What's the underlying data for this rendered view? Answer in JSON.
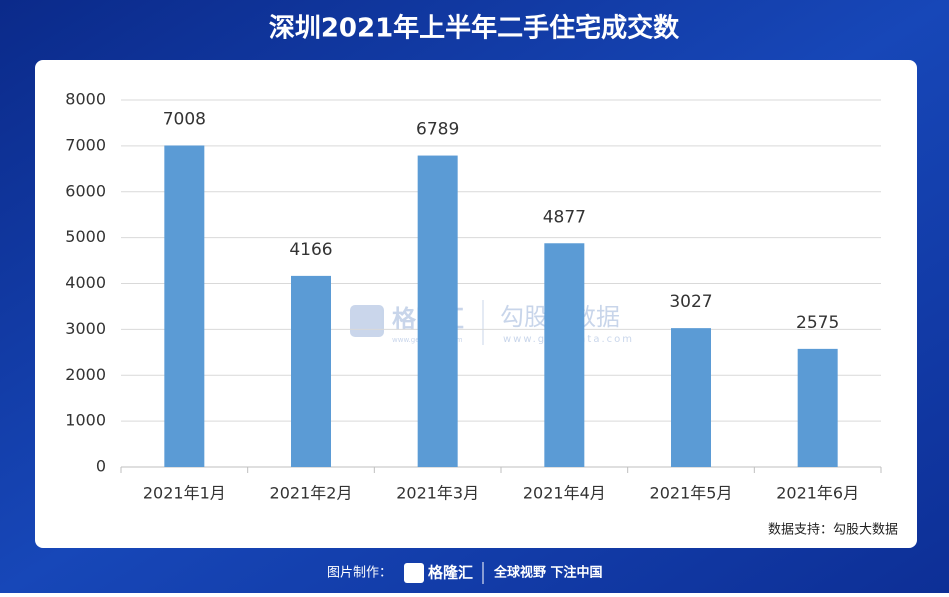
{
  "chart_data": {
    "type": "bar",
    "title": "深圳2021年上半年二手住宅成交数",
    "categories": [
      "2021年1月",
      "2021年2月",
      "2021年3月",
      "2021年4月",
      "2021年5月",
      "2021年6月"
    ],
    "values": [
      7008,
      4166,
      6789,
      4877,
      3027,
      2575
    ],
    "color": "#5b9bd5",
    "ylim": [
      0,
      8000
    ],
    "yticks": [
      0,
      1000,
      2000,
      3000,
      4000,
      5000,
      6000,
      7000,
      8000
    ],
    "grid": true,
    "source": "数据支持：勾股大数据"
  },
  "watermark": {
    "brand": "格隆汇",
    "brand_url": "www.gelonghui.com",
    "partner": "勾股大数据",
    "partner_url": "www.gogudata.com"
  },
  "footer": {
    "label": "图片制作：",
    "brand": "格隆汇",
    "slogan": "全球视野 下注中国"
  }
}
